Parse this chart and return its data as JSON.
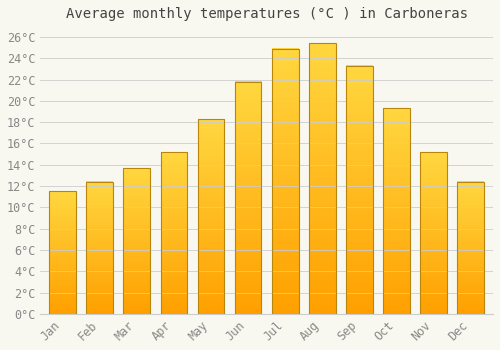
{
  "title": "Average monthly temperatures (°C ) in Carboneras",
  "months": [
    "Jan",
    "Feb",
    "Mar",
    "Apr",
    "May",
    "Jun",
    "Jul",
    "Aug",
    "Sep",
    "Oct",
    "Nov",
    "Dec"
  ],
  "values": [
    11.5,
    12.4,
    13.7,
    15.2,
    18.3,
    21.8,
    24.9,
    25.4,
    23.3,
    19.3,
    15.2,
    12.4
  ],
  "bar_color_top": "#FFD740",
  "bar_color_bottom": "#FFA000",
  "bar_edge_color": "#B8860B",
  "background_color": "#F8F8F0",
  "grid_color": "#CCCCCC",
  "text_color": "#888888",
  "title_color": "#444444",
  "ylim": [
    0,
    27
  ],
  "yticks": [
    0,
    2,
    4,
    6,
    8,
    10,
    12,
    14,
    16,
    18,
    20,
    22,
    24,
    26
  ],
  "title_fontsize": 10,
  "tick_fontsize": 8.5,
  "bar_width": 0.72
}
